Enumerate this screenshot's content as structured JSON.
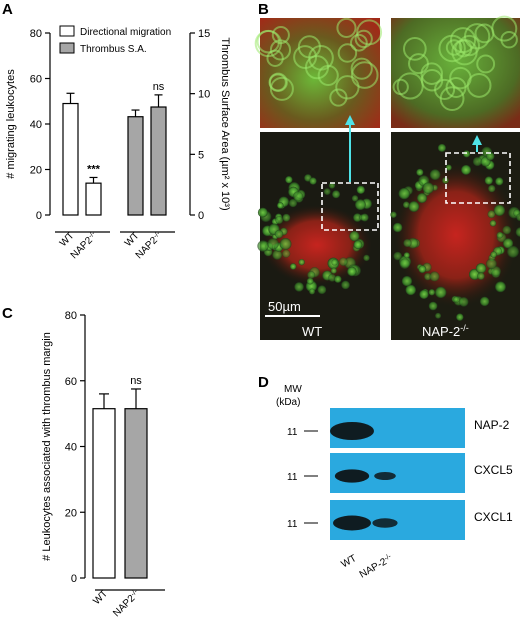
{
  "panels": {
    "a": "A",
    "b": "B",
    "c": "C",
    "d": "D"
  },
  "chart_data": [
    {
      "type": "bar",
      "panel": "A",
      "ylabel": "# migrating leukocytes",
      "y2label": "Thrombus Surface Area (µm² x 10³)",
      "ylim": [
        0,
        80
      ],
      "y2lim": [
        0,
        15
      ],
      "yticks": [
        "0",
        "20",
        "40",
        "60",
        "80"
      ],
      "y2ticks": [
        "0",
        "5",
        "10",
        "15"
      ],
      "legend": [
        "Directional migration",
        "Thrombus S.A."
      ],
      "groups": [
        {
          "name": "Directional migration",
          "axis": "left",
          "color": "#ffffff",
          "categories": [
            "WT",
            "NAP2-/-"
          ],
          "values": [
            49,
            14
          ],
          "errors": [
            4.5,
            2.5
          ],
          "annotations": [
            "",
            "***"
          ]
        },
        {
          "name": "Thrombus S.A.",
          "axis": "right",
          "color": "#a6a6a6",
          "categories": [
            "WT",
            "NAP2-/-"
          ],
          "values": [
            8.1,
            8.9
          ],
          "errors": [
            0.55,
            1.0
          ],
          "annotations": [
            "",
            "ns"
          ]
        }
      ]
    },
    {
      "type": "bar",
      "panel": "C",
      "ylabel": "# Leukocytes associated with thrombus margin",
      "ylim": [
        0,
        80
      ],
      "yticks": [
        "0",
        "20",
        "40",
        "60",
        "80"
      ],
      "categories": [
        "WT",
        "NAP2-/-"
      ],
      "values": [
        51.5,
        51.5
      ],
      "errors": [
        4.5,
        6
      ],
      "colors": [
        "#ffffff",
        "#a6a6a6"
      ],
      "annotations": [
        "",
        "ns"
      ]
    }
  ],
  "micrograph": {
    "scale_bar": "50µm",
    "label_wt": "WT",
    "label_ko": "NAP-2-/-"
  },
  "blot": {
    "mw_header": "MW",
    "mw_unit": "(kDa)",
    "rows": [
      {
        "mw": "11",
        "protein": "NAP-2",
        "wt": 1.0,
        "ko": 0.0
      },
      {
        "mw": "11",
        "protein": "CXCL5",
        "wt": 0.6,
        "ko": 0.4
      },
      {
        "mw": "11",
        "protein": "CXCL1",
        "wt": 0.75,
        "ko": 0.55
      }
    ],
    "lanes": [
      "WT",
      "NAP-2-/-"
    ]
  },
  "colors": {
    "gray_bar": "#a6a6a6",
    "blot_bg": "#2aa9df",
    "arrow": "#4fe3e8"
  }
}
